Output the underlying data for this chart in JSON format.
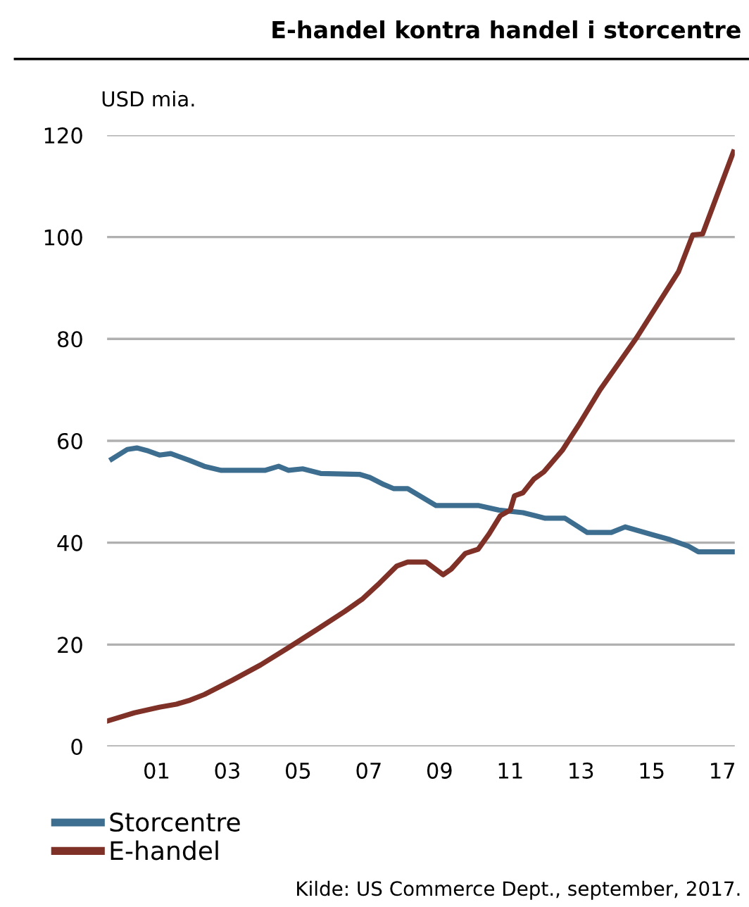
{
  "chart_data": {
    "type": "line",
    "title": "E-handel kontra handel i storcentre",
    "ylabel": "USD mia.",
    "annotations": [
      "Kilde: US Commerce Dept., september, 2017."
    ],
    "xlim": [
      1999.6,
      2017.35
    ],
    "xticks": [
      {
        "value": 2001,
        "label": "01"
      },
      {
        "value": 2003,
        "label": "03"
      },
      {
        "value": 2005,
        "label": "05"
      },
      {
        "value": 2007,
        "label": "07"
      },
      {
        "value": 2009,
        "label": "09"
      },
      {
        "value": 2011,
        "label": "11"
      },
      {
        "value": 2013,
        "label": "13"
      },
      {
        "value": 2015,
        "label": "15"
      },
      {
        "value": 2017,
        "label": "17"
      }
    ],
    "ylim": [
      0,
      120
    ],
    "yticks": [
      0,
      20,
      40,
      60,
      80,
      100,
      120
    ],
    "grid": "y",
    "legend": "bottom left",
    "marker": "none",
    "line_style": "solid",
    "series": [
      {
        "name": "Storcentre",
        "color": "#3d6e8f",
        "x": [
          1999.73,
          2000.17,
          2000.44,
          2000.72,
          2001.08,
          2001.4,
          2001.95,
          2002.35,
          2002.83,
          2004.06,
          2004.45,
          2004.73,
          2005.13,
          2005.64,
          2006.75,
          2007.03,
          2007.43,
          2007.71,
          2008.1,
          2008.9,
          2010.09,
          2010.68,
          2011.36,
          2011.99,
          2012.55,
          2013.18,
          2013.86,
          2014.25,
          2015.05,
          2015.52,
          2016.04,
          2016.32,
          2016.95,
          2017.31
        ],
        "values": [
          56.4,
          58.3,
          58.6,
          58.1,
          57.2,
          57.5,
          56.1,
          55.0,
          54.2,
          54.2,
          55.0,
          54.2,
          54.5,
          53.6,
          53.4,
          52.8,
          51.4,
          50.6,
          50.6,
          47.3,
          47.3,
          46.4,
          45.9,
          44.8,
          44.8,
          42.0,
          42.0,
          43.1,
          41.5,
          40.6,
          39.3,
          38.2,
          38.2,
          38.2
        ]
      },
      {
        "name": "E-handel",
        "color": "#7f3128",
        "x": [
          1999.61,
          2000.37,
          2001.08,
          2001.56,
          2001.95,
          2002.35,
          2003.14,
          2003.94,
          2004.73,
          2005.52,
          2006.32,
          2006.83,
          2007.31,
          2007.79,
          2008.1,
          2008.62,
          2009.1,
          2009.33,
          2009.73,
          2010.09,
          2010.4,
          2010.72,
          2011.0,
          2011.12,
          2011.36,
          2011.67,
          2011.95,
          2012.47,
          2012.98,
          2013.54,
          2014.57,
          2015.76,
          2016.16,
          2016.44,
          2017.31
        ],
        "values": [
          5.0,
          6.6,
          7.7,
          8.3,
          9.1,
          10.2,
          13.0,
          16.0,
          19.4,
          22.9,
          26.5,
          29.0,
          32.1,
          35.4,
          36.2,
          36.2,
          33.7,
          34.8,
          37.9,
          38.7,
          41.7,
          45.3,
          46.4,
          49.2,
          49.8,
          52.5,
          53.9,
          58.1,
          63.6,
          70.0,
          80.2,
          93.2,
          100.4,
          100.6,
          116.7
        ]
      }
    ]
  }
}
